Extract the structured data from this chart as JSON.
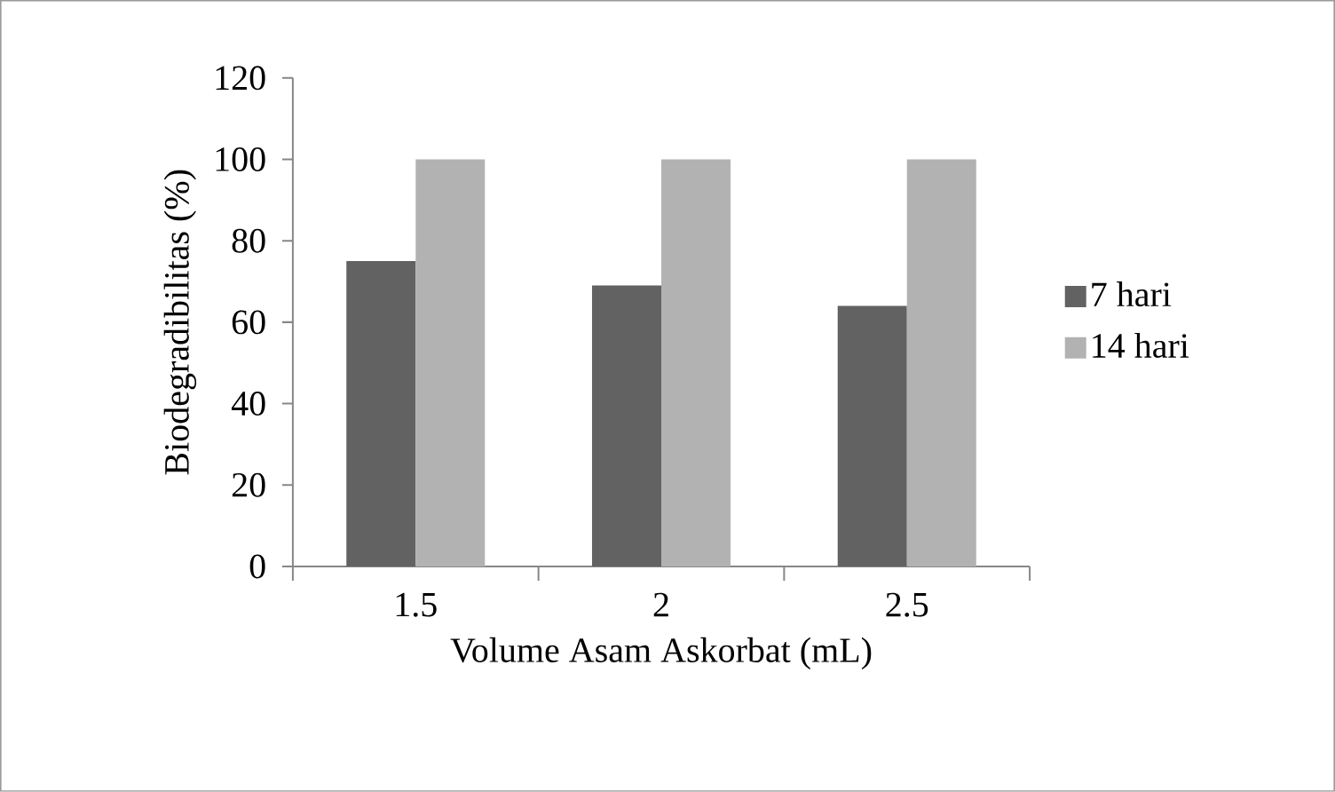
{
  "chart_data": {
    "type": "bar",
    "xlabel": "Volume Asam Askorbat (mL)",
    "ylabel": "Biodegradibilitas (%)",
    "categories": [
      "1.5",
      "2",
      "2.5"
    ],
    "series": [
      {
        "name": "7 hari",
        "color": "#626262",
        "values": [
          75,
          69,
          64
        ]
      },
      {
        "name": "14 hari",
        "color": "#b2b2b2",
        "values": [
          100,
          100,
          100
        ]
      }
    ],
    "ylim": [
      0,
      120
    ],
    "yticks": [
      0,
      20,
      40,
      60,
      80,
      100,
      120
    ],
    "grid": false,
    "legend": "right"
  }
}
